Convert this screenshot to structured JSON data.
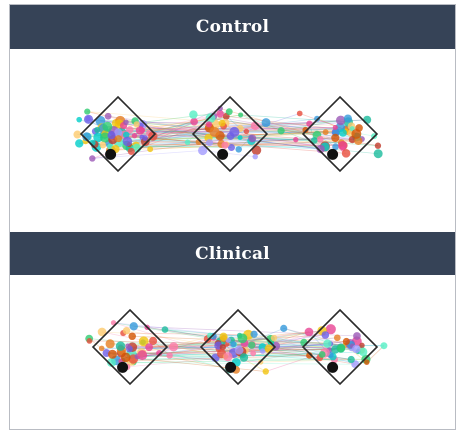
{
  "panels": [
    {
      "title": "Control",
      "diamonds": 3,
      "dot_count": 150,
      "seed": 17
    },
    {
      "title": "Clinical",
      "diamonds": 3,
      "dot_count": 130,
      "seed": 53
    }
  ],
  "colors": {
    "header_bg": "#364357",
    "header_text": "#ffffff",
    "diamond_stroke": "#2b2b2b",
    "anchor_dot": "#111111",
    "palette": [
      "#e74c3c",
      "#f1c40f",
      "#2ecc71",
      "#3498db",
      "#9b59b6",
      "#e67e22",
      "#1abc9c",
      "#e84393",
      "#6c5ce7",
      "#fd79a8",
      "#00cec9",
      "#a29bfe",
      "#fdcb6e",
      "#55efc4",
      "#d35400",
      "#c0392b"
    ]
  }
}
